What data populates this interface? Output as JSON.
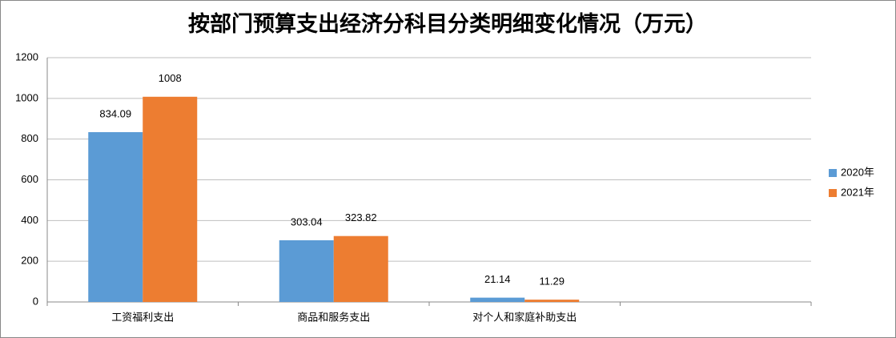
{
  "chart_data": {
    "type": "bar",
    "title": "按部门预算支出经济分科目分类明细变化情况（万元）",
    "categories": [
      "工资福利支出",
      "商品和服务支出",
      "对个人和家庭补助支出",
      null
    ],
    "series": [
      {
        "name": "2020年",
        "color": "#5b9bd5",
        "values": [
          834.09,
          303.04,
          21.14,
          null
        ]
      },
      {
        "name": "2021年",
        "color": "#ed7d31",
        "values": [
          1008,
          323.82,
          11.29,
          null
        ]
      }
    ],
    "ylim": [
      0,
      1200
    ],
    "yticks": [
      0,
      200,
      400,
      600,
      800,
      1000,
      1200
    ],
    "grid": true,
    "legend": "right"
  }
}
